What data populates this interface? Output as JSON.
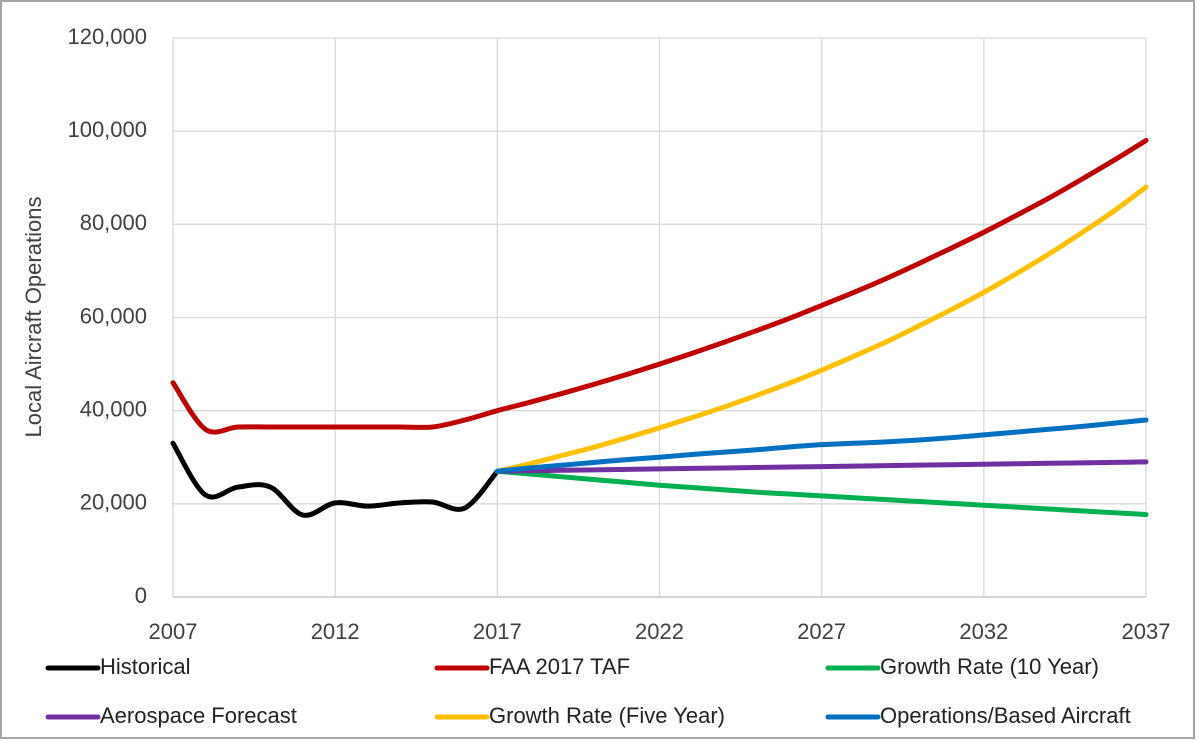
{
  "chart_data": {
    "type": "line",
    "y_label": "Local Aircraft Operations",
    "x": [
      2007,
      2008,
      2009,
      2010,
      2011,
      2012,
      2013,
      2014,
      2015,
      2016,
      2017,
      2018,
      2019,
      2020,
      2021,
      2022,
      2023,
      2024,
      2025,
      2026,
      2027,
      2028,
      2029,
      2030,
      2031,
      2032,
      2033,
      2034,
      2035,
      2036,
      2037
    ],
    "xlim": [
      2007,
      2037
    ],
    "xticks": [
      2007,
      2012,
      2017,
      2022,
      2027,
      2032,
      2037
    ],
    "ylim": [
      0,
      120000
    ],
    "yticks": [
      0,
      {
        "value": 20000,
        "label": "20,000"
      },
      {
        "value": 40000,
        "label": "40,000"
      },
      {
        "value": 60000,
        "label": "60,000"
      },
      {
        "value": 80000,
        "label": "80,000"
      },
      {
        "value": 100000,
        "label": "100,000"
      },
      {
        "value": 120000,
        "label": "120,000"
      }
    ],
    "grid": true,
    "legend": "bottom",
    "series": [
      {
        "name": "Historical",
        "color": "#000000",
        "values": [
          33000,
          21900,
          23600,
          23600,
          17600,
          20200,
          19500,
          20200,
          20400,
          19100,
          27000,
          null,
          null,
          null,
          null,
          null,
          null,
          null,
          null,
          null,
          null,
          null,
          null,
          null,
          null,
          null,
          null,
          null,
          null,
          null,
          null
        ]
      },
      {
        "name": "FAA 2017 TAF",
        "color": "#c00000",
        "values": [
          46000,
          36000,
          36500,
          36500,
          36500,
          36500,
          36500,
          36500,
          36500,
          38000,
          40000,
          41800,
          43700,
          45700,
          47800,
          50000,
          52300,
          54700,
          57200,
          59800,
          62600,
          65400,
          68400,
          71600,
          74900,
          78300,
          81900,
          85600,
          89600,
          93700,
          98000
        ]
      },
      {
        "name": "Growth Rate (10 Year)",
        "color": "#00b050",
        "values": [
          null,
          null,
          null,
          null,
          null,
          null,
          null,
          null,
          null,
          null,
          27000,
          26400,
          25800,
          25200,
          24600,
          24000,
          23500,
          23000,
          22500,
          22100,
          21700,
          21300,
          20900,
          20500,
          20100,
          19700,
          19300,
          18900,
          18500,
          18100,
          17700
        ]
      },
      {
        "name": "Aerospace Forecast",
        "color": "#7030a0",
        "values": [
          null,
          null,
          null,
          null,
          null,
          null,
          null,
          null,
          null,
          null,
          27000,
          27100,
          27200,
          27300,
          27400,
          27500,
          27600,
          27700,
          27800,
          27900,
          28000,
          28100,
          28200,
          28300,
          28400,
          28500,
          28600,
          28700,
          28800,
          28900,
          29000
        ]
      },
      {
        "name": "Growth Rate (Five Year)",
        "color": "#ffc000",
        "values": [
          null,
          null,
          null,
          null,
          null,
          null,
          null,
          null,
          null,
          null,
          27000,
          28600,
          30400,
          32200,
          34200,
          36300,
          38500,
          40800,
          43300,
          45900,
          48700,
          51700,
          54800,
          58200,
          61700,
          65400,
          69400,
          73600,
          78100,
          82800,
          88000
        ]
      },
      {
        "name": "Operations/Based Aircraft",
        "color": "#0070c0",
        "values": [
          null,
          null,
          null,
          null,
          null,
          null,
          null,
          null,
          null,
          null,
          27000,
          27700,
          28300,
          28900,
          29500,
          30000,
          30600,
          31100,
          31600,
          32200,
          32700,
          33000,
          33300,
          33700,
          34200,
          34800,
          35400,
          36000,
          36600,
          37300,
          38000
        ]
      }
    ]
  }
}
